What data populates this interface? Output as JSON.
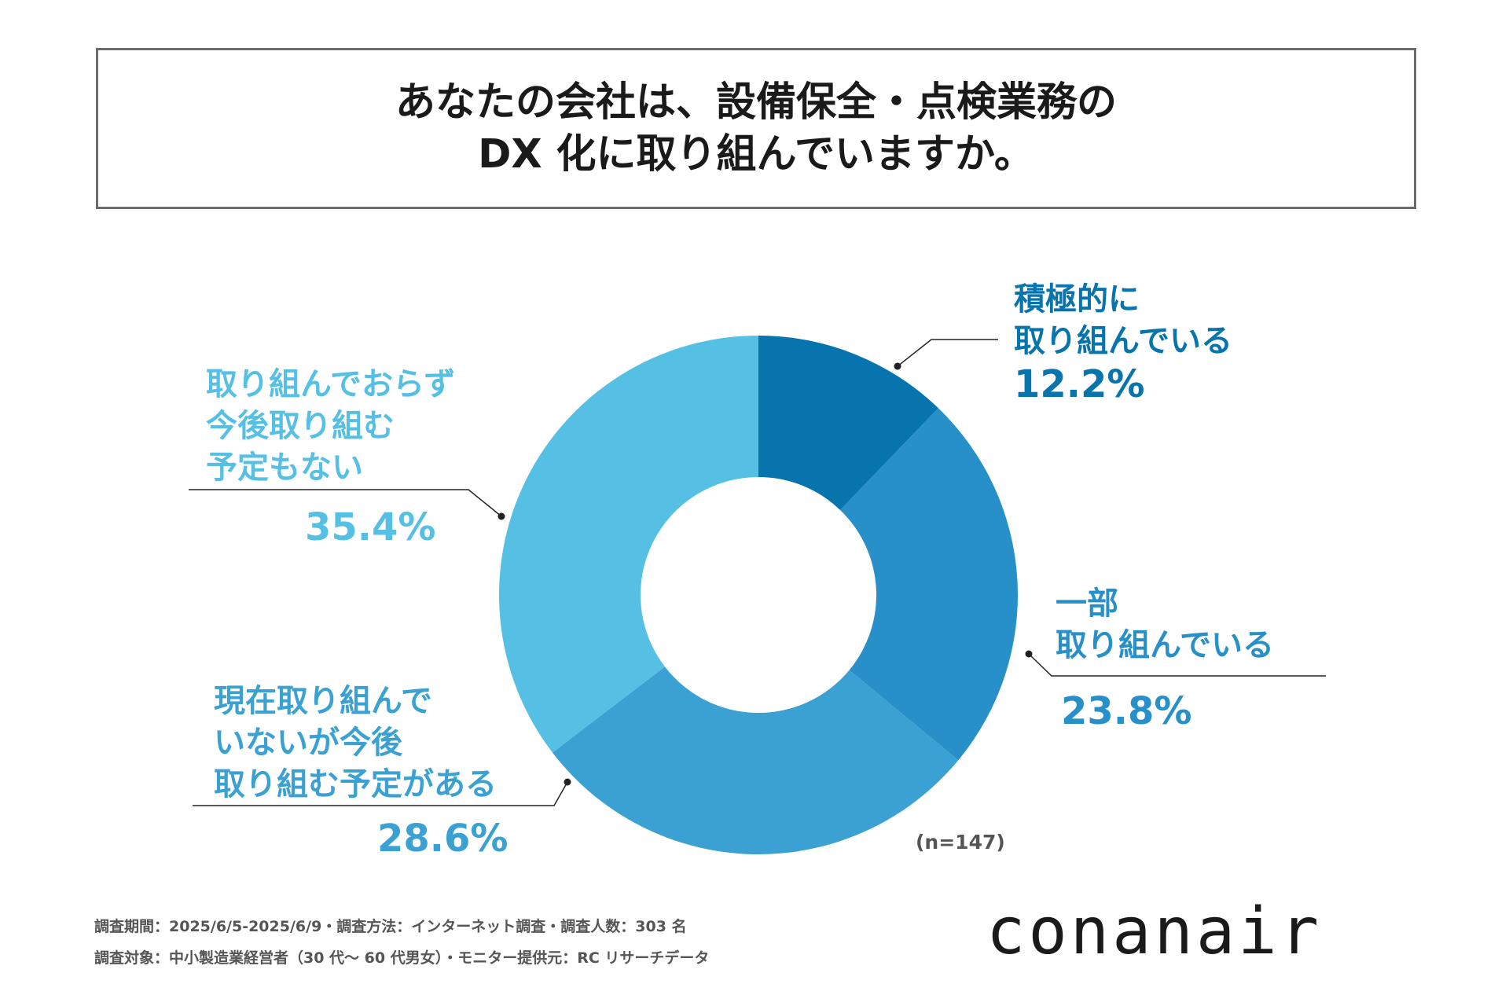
{
  "title": {
    "line1": "あなたの会社は、設備保全・点検業務の",
    "line2": "DX 化に取り組んでいますか。"
  },
  "chart_data": {
    "type": "pie",
    "style": "donut",
    "categories": [
      "積極的に取り組んでいる",
      "一部取り組んでいる",
      "現在取り組んでいないが今後取り組む予定がある",
      "取り組んでおらず今後取り組む予定もない"
    ],
    "values": [
      12.2,
      23.8,
      28.6,
      35.4
    ],
    "value_labels": [
      "12.2%",
      "23.8%",
      "28.6%",
      "35.4%"
    ],
    "colors": [
      "#0774AD",
      "#2890C8",
      "#3BA1D2",
      "#56C0E4"
    ],
    "label_lines": [
      [
        "積極的に",
        "取り組んでいる"
      ],
      [
        "一部",
        "取り組んでいる"
      ],
      [
        "現在取り組んで",
        "いないが今後",
        "取り組む予定がある"
      ],
      [
        "取り組んでおらず",
        "今後取り組む",
        "予定もない"
      ]
    ],
    "sample_size": "(n=147)"
  },
  "footnotes": {
    "line1": "調査期間：2025/6/5-2025/6/9・調査方法：インターネット調査・調査人数：303 名",
    "line2": "調査対象：中小製造業経営者（30 代～ 60 代男女）・モニター提供元：RC リサーチデータ"
  },
  "brand": {
    "logo_text": "conanair"
  }
}
